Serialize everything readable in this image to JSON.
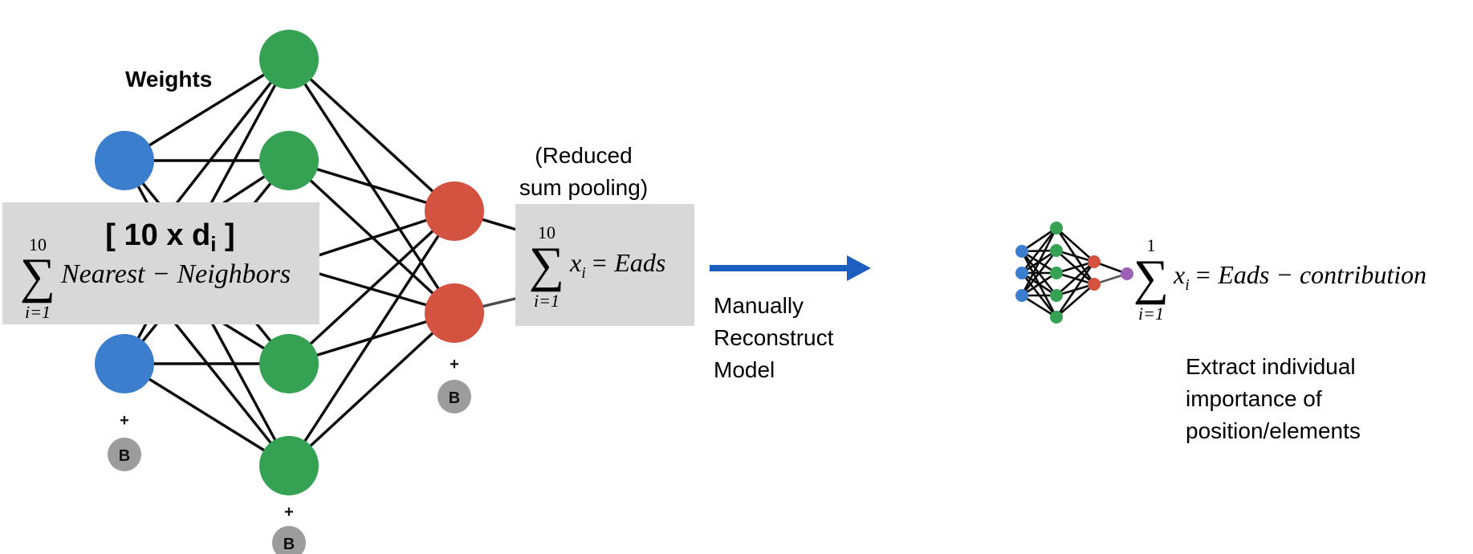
{
  "colors": {
    "input": "#3a7ecd",
    "hidden": "#35a153",
    "output": "#d35340",
    "final": "#9b62b8",
    "bias": "#9c9c9c",
    "box": "#d8d8d8",
    "arrow": "#1c5fc0"
  },
  "labels": {
    "weights": "Weights",
    "bias_plus": "+",
    "bias_letter": "B",
    "pooling_line1": "(Reduced",
    "pooling_line2": "sum pooling)",
    "arrow_line1": "Manually",
    "arrow_line2": "Reconstruct",
    "arrow_line3": "Model",
    "extract_line1": "Extract individual",
    "extract_line2": "importance of",
    "extract_line3": "position/elements"
  },
  "formulas": {
    "nn_title_prefix": "[ 10 x d",
    "nn_title_sub": "i",
    "nn_title_suffix": " ]",
    "nn_sum_upper": "10",
    "nn_sum_lower": "i=1",
    "nn_sum_body": "Nearest − Neighbors",
    "pool_sum_upper": "10",
    "pool_sum_lower": "i=1",
    "pool_var": "x",
    "pool_var_sub": "i",
    "pool_rhs": "= Eads",
    "contrib_sum_upper": "1",
    "contrib_sum_lower": "i=1",
    "contrib_var": "x",
    "contrib_var_sub": "i",
    "contrib_rhs": "= Eads − contribution"
  }
}
